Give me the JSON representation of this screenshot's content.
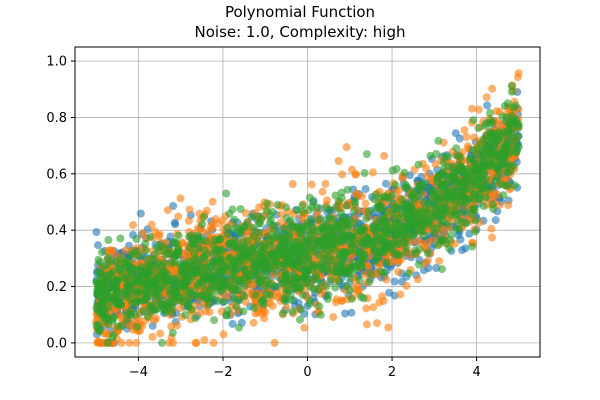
{
  "chart_data": {
    "type": "scatter",
    "title": "Polynomial Function",
    "subtitle": "Noise: 1.0, Complexity: high",
    "xlabel": "",
    "ylabel": "",
    "xlim": [
      -5.5,
      5.5
    ],
    "ylim": [
      -0.05,
      1.05
    ],
    "grid": true,
    "x_ticks": [
      -4,
      -2,
      0,
      2,
      4
    ],
    "x_tick_labels": [
      "−4",
      "−2",
      "0",
      "2",
      "4"
    ],
    "y_ticks": [
      0.0,
      0.2,
      0.4,
      0.6,
      0.8,
      1.0
    ],
    "y_tick_labels": [
      "0.0",
      "0.2",
      "0.4",
      "0.6",
      "0.8",
      "1.0"
    ],
    "x_domain": [
      -5,
      5
    ],
    "points_per_series": 1500,
    "series": [
      {
        "color": "#1f77b4",
        "trend": [
          0.3,
          0.03,
          0.006,
          0.001
        ],
        "noise": 0.08
      },
      {
        "color": "#ff7f0e",
        "trend": [
          0.31,
          0.025,
          0.005,
          0.0015
        ],
        "noise": 0.1
      },
      {
        "color": "#2ca02c",
        "trend": [
          0.31,
          0.03,
          0.006,
          0.0012
        ],
        "noise": 0.08
      }
    ],
    "marker_alpha": 0.6
  }
}
